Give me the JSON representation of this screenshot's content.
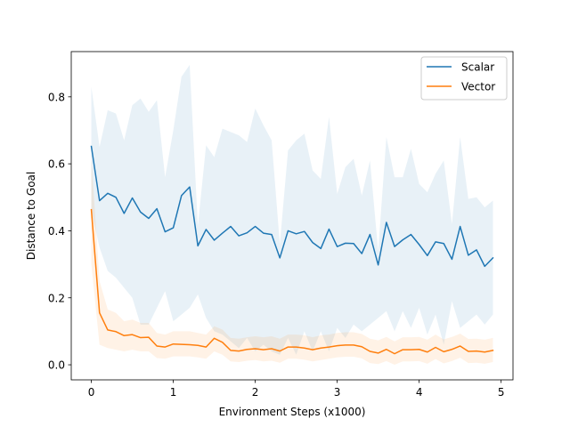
{
  "colors": {
    "scalar": "#1f77b4",
    "vector": "#ff7f0e",
    "axes": "#000000",
    "background": "#ffffff"
  },
  "chart_data": {
    "type": "line",
    "title": "",
    "xlabel": "Environment Steps (x1000)",
    "ylabel": "Distance to Goal",
    "xlim": [
      -0.245,
      5.145
    ],
    "ylim": [
      -0.045,
      0.935
    ],
    "xticks": [
      0,
      1,
      2,
      3,
      4,
      5
    ],
    "xtick_labels": [
      "0",
      "1",
      "2",
      "3",
      "4",
      "5"
    ],
    "yticks": [
      0.0,
      0.2,
      0.4,
      0.6,
      0.8
    ],
    "ytick_labels": [
      "0.0",
      "0.2",
      "0.4",
      "0.6",
      "0.8"
    ],
    "grid": false,
    "legend_position": "top-right",
    "x": [
      0,
      0.1,
      0.2,
      0.3,
      0.4,
      0.5,
      0.6,
      0.7,
      0.8,
      0.9,
      1.0,
      1.1,
      1.2,
      1.3,
      1.4,
      1.5,
      1.6,
      1.7,
      1.8,
      1.9,
      2.0,
      2.1,
      2.2,
      2.3,
      2.4,
      2.5,
      2.6,
      2.7,
      2.8,
      2.9,
      3.0,
      3.1,
      3.2,
      3.3,
      3.4,
      3.5,
      3.6,
      3.7,
      3.8,
      3.9,
      4.0,
      4.1,
      4.2,
      4.3,
      4.4,
      4.5,
      4.6,
      4.7,
      4.8,
      4.9
    ],
    "series": [
      {
        "name": "Scalar",
        "color_key": "scalar",
        "values": [
          0.652,
          0.49,
          0.512,
          0.5,
          0.452,
          0.498,
          0.456,
          0.437,
          0.466,
          0.397,
          0.409,
          0.505,
          0.531,
          0.355,
          0.404,
          0.372,
          0.393,
          0.413,
          0.385,
          0.394,
          0.413,
          0.393,
          0.389,
          0.319,
          0.4,
          0.391,
          0.398,
          0.365,
          0.347,
          0.405,
          0.353,
          0.363,
          0.362,
          0.332,
          0.389,
          0.298,
          0.425,
          0.353,
          0.373,
          0.389,
          0.359,
          0.326,
          0.367,
          0.362,
          0.315,
          0.413,
          0.327,
          0.343,
          0.294,
          0.319
        ],
        "upper": [
          0.83,
          0.65,
          0.76,
          0.75,
          0.67,
          0.775,
          0.795,
          0.755,
          0.79,
          0.56,
          0.7,
          0.86,
          0.895,
          0.415,
          0.655,
          0.62,
          0.705,
          0.695,
          0.685,
          0.665,
          0.765,
          0.715,
          0.67,
          0.36,
          0.64,
          0.67,
          0.69,
          0.58,
          0.555,
          0.74,
          0.51,
          0.59,
          0.615,
          0.505,
          0.61,
          0.34,
          0.68,
          0.56,
          0.56,
          0.645,
          0.54,
          0.515,
          0.57,
          0.61,
          0.42,
          0.68,
          0.495,
          0.5,
          0.47,
          0.49
        ],
        "lower": [
          0.46,
          0.35,
          0.28,
          0.26,
          0.23,
          0.2,
          0.12,
          0.12,
          0.17,
          0.22,
          0.13,
          0.15,
          0.17,
          0.21,
          0.14,
          0.1,
          0.09,
          0.07,
          0.05,
          0.08,
          0.04,
          0.06,
          0.04,
          0.03,
          0.08,
          0.03,
          0.1,
          0.04,
          0.1,
          0.04,
          0.11,
          0.08,
          0.12,
          0.1,
          0.12,
          0.14,
          0.16,
          0.1,
          0.16,
          0.11,
          0.17,
          0.09,
          0.15,
          0.06,
          0.19,
          0.11,
          0.13,
          0.15,
          0.12,
          0.15
        ]
      },
      {
        "name": "Vector",
        "color_key": "vector",
        "values": [
          0.463,
          0.155,
          0.104,
          0.099,
          0.087,
          0.09,
          0.081,
          0.082,
          0.056,
          0.053,
          0.062,
          0.061,
          0.06,
          0.058,
          0.053,
          0.079,
          0.067,
          0.043,
          0.041,
          0.046,
          0.048,
          0.045,
          0.048,
          0.041,
          0.053,
          0.053,
          0.05,
          0.045,
          0.05,
          0.053,
          0.057,
          0.059,
          0.059,
          0.054,
          0.04,
          0.035,
          0.046,
          0.033,
          0.045,
          0.045,
          0.046,
          0.038,
          0.052,
          0.039,
          0.046,
          0.056,
          0.04,
          0.041,
          0.038,
          0.043
        ],
        "upper": [
          0.62,
          0.25,
          0.165,
          0.155,
          0.13,
          0.135,
          0.125,
          0.125,
          0.095,
          0.09,
          0.1,
          0.1,
          0.1,
          0.095,
          0.09,
          0.115,
          0.105,
          0.08,
          0.078,
          0.082,
          0.085,
          0.082,
          0.085,
          0.078,
          0.09,
          0.09,
          0.088,
          0.082,
          0.088,
          0.09,
          0.095,
          0.097,
          0.097,
          0.092,
          0.078,
          0.073,
          0.083,
          0.07,
          0.082,
          0.082,
          0.083,
          0.075,
          0.09,
          0.076,
          0.083,
          0.093,
          0.077,
          0.078,
          0.075,
          0.08
        ],
        "lower": [
          0.3,
          0.06,
          0.05,
          0.045,
          0.04,
          0.045,
          0.04,
          0.04,
          0.02,
          0.018,
          0.025,
          0.025,
          0.025,
          0.022,
          0.018,
          0.04,
          0.03,
          0.01,
          0.008,
          0.012,
          0.014,
          0.01,
          0.012,
          0.006,
          0.018,
          0.018,
          0.015,
          0.01,
          0.014,
          0.018,
          0.022,
          0.024,
          0.024,
          0.019,
          0.005,
          0.002,
          0.011,
          0.0,
          0.01,
          0.01,
          0.011,
          0.003,
          0.017,
          0.004,
          0.011,
          0.021,
          0.005,
          0.006,
          0.003,
          0.008
        ]
      }
    ]
  }
}
